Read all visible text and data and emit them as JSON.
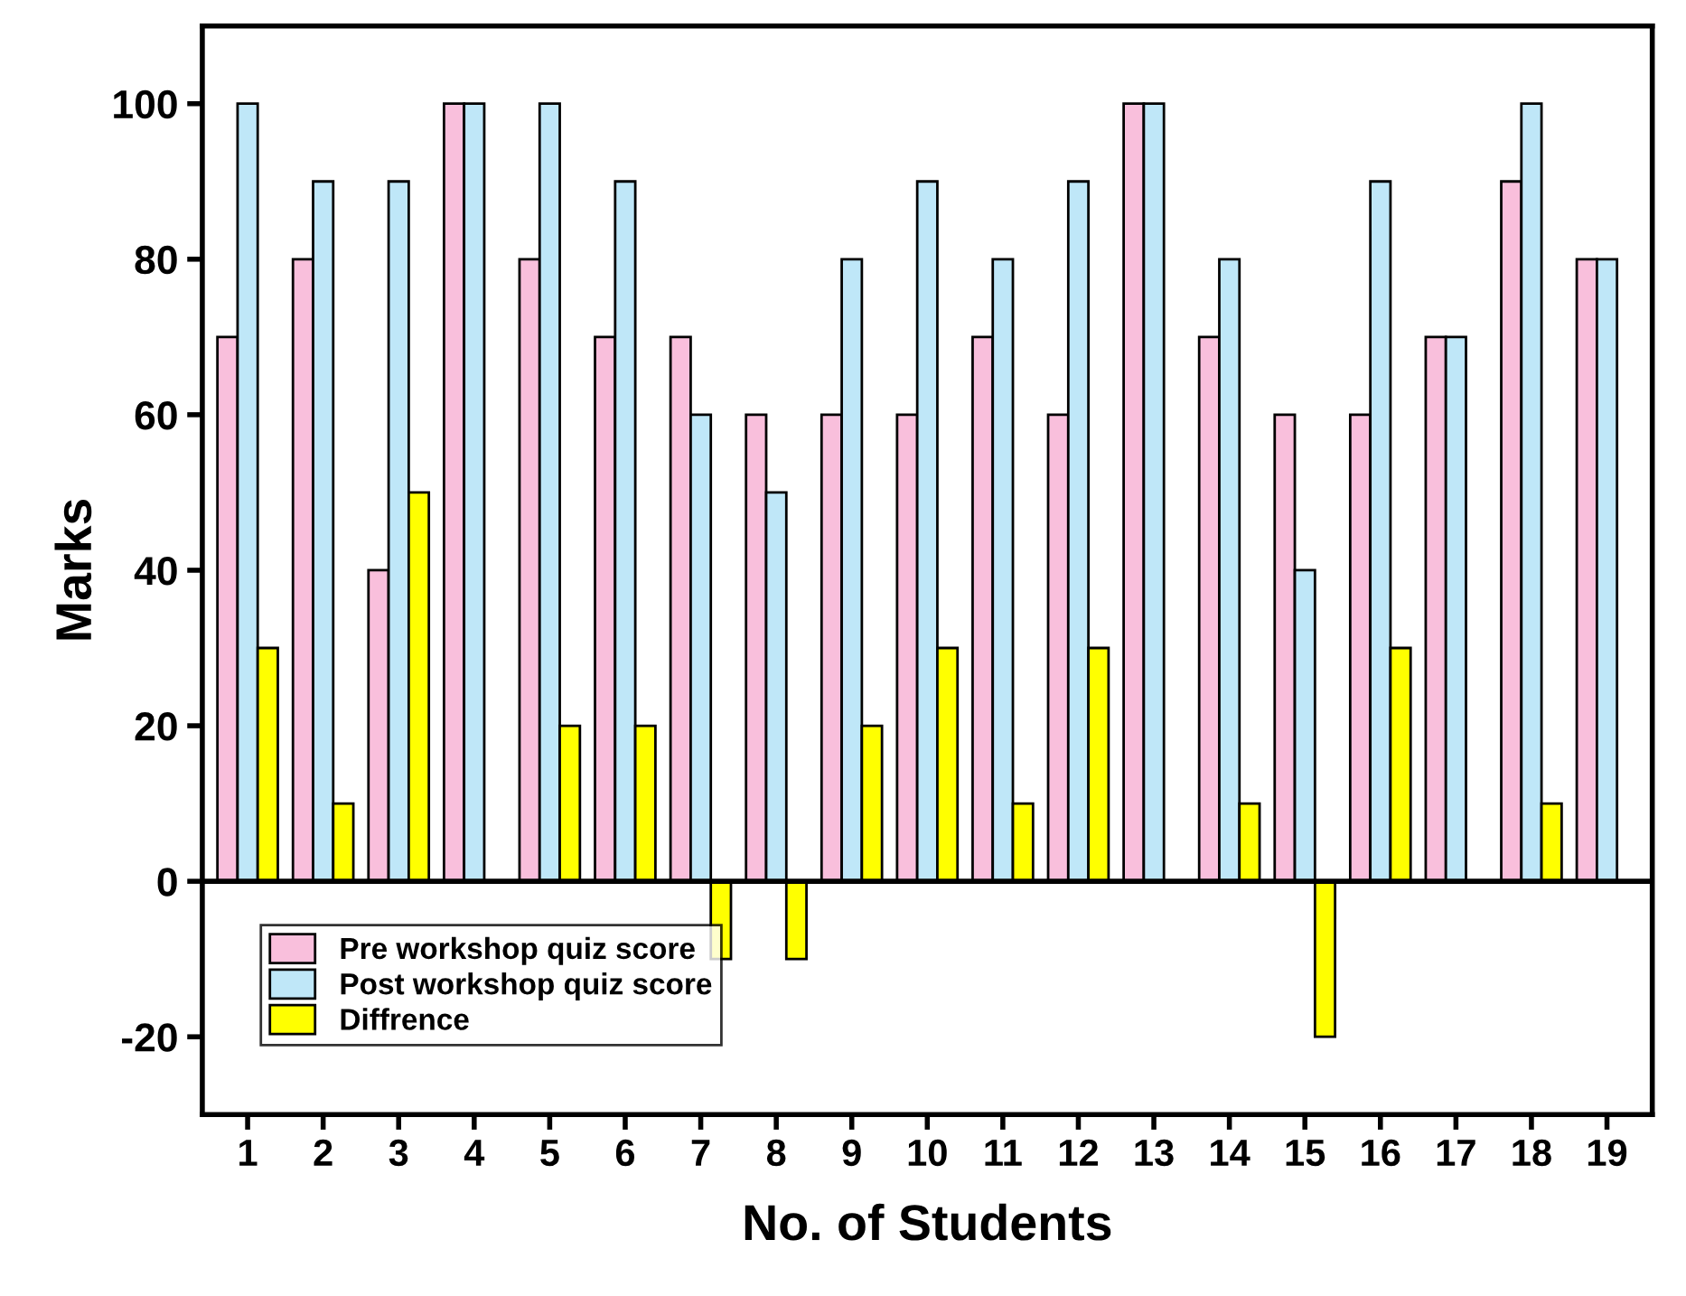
{
  "chart_data": {
    "type": "bar",
    "xlabel": "No. of Students",
    "ylabel": "Marks",
    "categories": [
      "1",
      "2",
      "3",
      "4",
      "5",
      "6",
      "7",
      "8",
      "9",
      "10",
      "11",
      "12",
      "13",
      "14",
      "15",
      "16",
      "17",
      "18",
      "19"
    ],
    "series": [
      {
        "name": "Pre workshop quiz score",
        "color": "#f9bfdc",
        "values": [
          70,
          80,
          40,
          100,
          80,
          70,
          70,
          60,
          60,
          60,
          70,
          60,
          100,
          70,
          60,
          60,
          70,
          90,
          80
        ]
      },
      {
        "name": "Post workshop quiz score",
        "color": "#bfe7f8",
        "values": [
          100,
          90,
          90,
          100,
          100,
          90,
          60,
          50,
          80,
          90,
          80,
          90,
          100,
          80,
          40,
          90,
          70,
          100,
          80
        ]
      },
      {
        "name": "Diffrence",
        "color": "#ffff00",
        "values": [
          30,
          10,
          50,
          0,
          20,
          20,
          -10,
          -10,
          20,
          30,
          10,
          30,
          0,
          10,
          -20,
          30,
          0,
          10,
          0
        ]
      }
    ],
    "ylim": [
      -30,
      110
    ],
    "yticks": [
      -20,
      0,
      20,
      40,
      60,
      80,
      100
    ],
    "grid": false,
    "ref_lines": [
      {
        "axis": "y",
        "value": 0,
        "color": "#000000",
        "line_style": "solid"
      }
    ],
    "legend": "bottom left"
  }
}
